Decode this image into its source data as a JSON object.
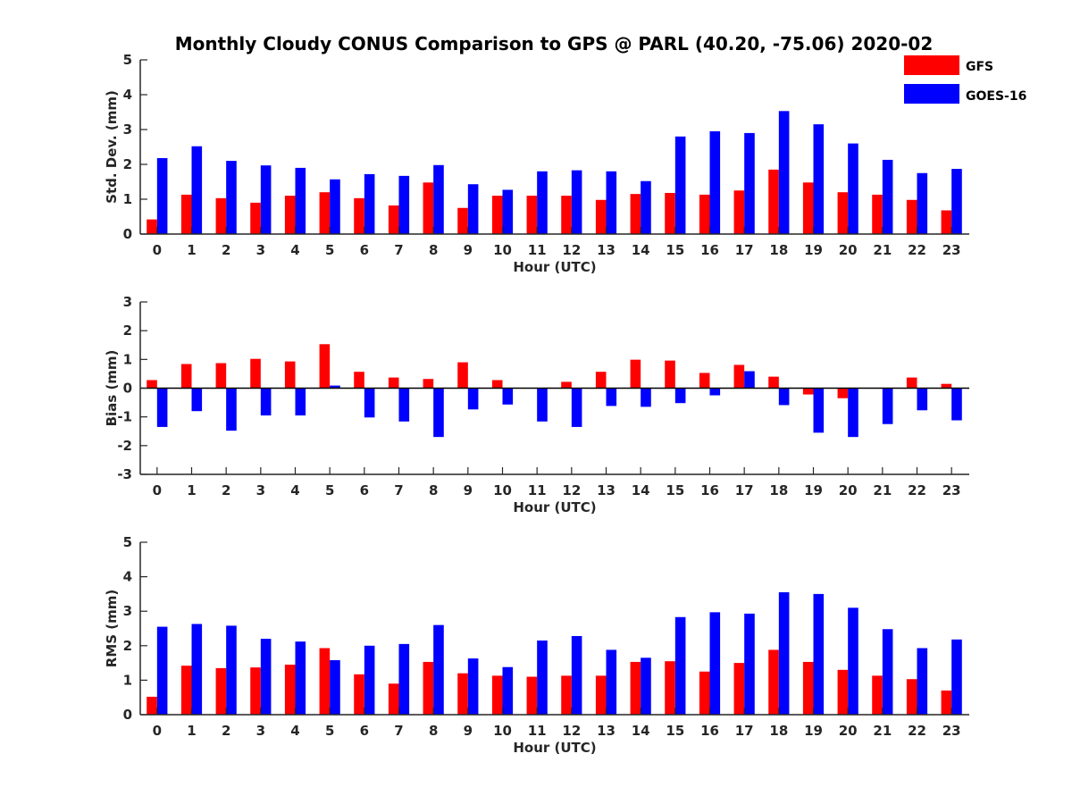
{
  "figure": {
    "title": "Monthly Cloudy CONUS Comparison to GPS @ PARL (40.20, -75.06) 2020-02"
  },
  "legend": {
    "placement": "top-right",
    "items": [
      {
        "label": "GFS",
        "color": "#ff0000"
      },
      {
        "label": "GOES-16",
        "color": "#0000ff"
      }
    ]
  },
  "chart_data": [
    {
      "type": "bar",
      "xlabel": "Hour (UTC)",
      "ylabel": "Std. Dev. (mm)",
      "ylim": [
        0,
        5
      ],
      "yticks": [
        0,
        1,
        2,
        3,
        4,
        5
      ],
      "categories": [
        "0",
        "1",
        "2",
        "3",
        "4",
        "5",
        "6",
        "7",
        "8",
        "9",
        "10",
        "11",
        "12",
        "13",
        "14",
        "15",
        "16",
        "17",
        "18",
        "19",
        "20",
        "21",
        "22",
        "23"
      ],
      "series": [
        {
          "name": "GFS",
          "color": "#ff0000",
          "values": [
            0.42,
            1.13,
            1.03,
            0.9,
            1.1,
            1.2,
            1.03,
            0.82,
            1.48,
            0.75,
            1.1,
            1.1,
            1.1,
            0.98,
            1.15,
            1.18,
            1.13,
            1.25,
            1.85,
            1.48,
            1.2,
            1.13,
            0.98,
            0.68
          ]
        },
        {
          "name": "GOES-16",
          "color": "#0000ff",
          "values": [
            2.18,
            2.52,
            2.1,
            1.97,
            1.9,
            1.57,
            1.72,
            1.67,
            1.98,
            1.43,
            1.27,
            1.8,
            1.83,
            1.8,
            1.52,
            2.8,
            2.95,
            2.9,
            3.53,
            3.15,
            2.6,
            2.13,
            1.75,
            1.87
          ]
        }
      ]
    },
    {
      "type": "bar",
      "xlabel": "Hour (UTC)",
      "ylabel": "Bias (mm)",
      "ylim": [
        -3,
        3
      ],
      "yticks": [
        -3,
        -2,
        -1,
        0,
        1,
        2,
        3
      ],
      "categories": [
        "0",
        "1",
        "2",
        "3",
        "4",
        "5",
        "6",
        "7",
        "8",
        "9",
        "10",
        "11",
        "12",
        "13",
        "14",
        "15",
        "16",
        "17",
        "18",
        "19",
        "20",
        "21",
        "22",
        "23"
      ],
      "series": [
        {
          "name": "GFS",
          "color": "#ff0000",
          "values": [
            0.28,
            0.84,
            0.87,
            1.02,
            0.93,
            1.53,
            0.57,
            0.37,
            0.32,
            0.9,
            0.28,
            0.0,
            0.22,
            0.57,
            0.99,
            0.96,
            0.53,
            0.81,
            0.4,
            -0.22,
            -0.35,
            0.0,
            0.37,
            0.15
          ]
        },
        {
          "name": "GOES-16",
          "color": "#0000ff",
          "values": [
            -1.35,
            -0.8,
            -1.48,
            -0.95,
            -0.95,
            0.09,
            -1.02,
            -1.16,
            -1.7,
            -0.74,
            -0.57,
            -1.16,
            -1.35,
            -0.62,
            -0.65,
            -0.52,
            -0.25,
            0.59,
            -0.59,
            -1.55,
            -1.7,
            -1.25,
            -0.77,
            -1.12
          ]
        }
      ]
    },
    {
      "type": "bar",
      "xlabel": "Hour (UTC)",
      "ylabel": "RMS (mm)",
      "ylim": [
        0,
        5
      ],
      "yticks": [
        0,
        1,
        2,
        3,
        4,
        5
      ],
      "categories": [
        "0",
        "1",
        "2",
        "3",
        "4",
        "5",
        "6",
        "7",
        "8",
        "9",
        "10",
        "11",
        "12",
        "13",
        "14",
        "15",
        "16",
        "17",
        "18",
        "19",
        "20",
        "21",
        "22",
        "23"
      ],
      "series": [
        {
          "name": "GFS",
          "color": "#ff0000",
          "values": [
            0.52,
            1.42,
            1.35,
            1.37,
            1.45,
            1.93,
            1.17,
            0.9,
            1.53,
            1.2,
            1.13,
            1.1,
            1.13,
            1.13,
            1.53,
            1.55,
            1.25,
            1.5,
            1.88,
            1.53,
            1.3,
            1.13,
            1.03,
            0.7
          ]
        },
        {
          "name": "GOES-16",
          "color": "#0000ff",
          "values": [
            2.55,
            2.63,
            2.58,
            2.2,
            2.12,
            1.58,
            2.0,
            2.05,
            2.6,
            1.63,
            1.38,
            2.15,
            2.28,
            1.88,
            1.65,
            2.83,
            2.97,
            2.93,
            3.55,
            3.5,
            3.1,
            2.48,
            1.93,
            2.18
          ]
        }
      ]
    }
  ]
}
